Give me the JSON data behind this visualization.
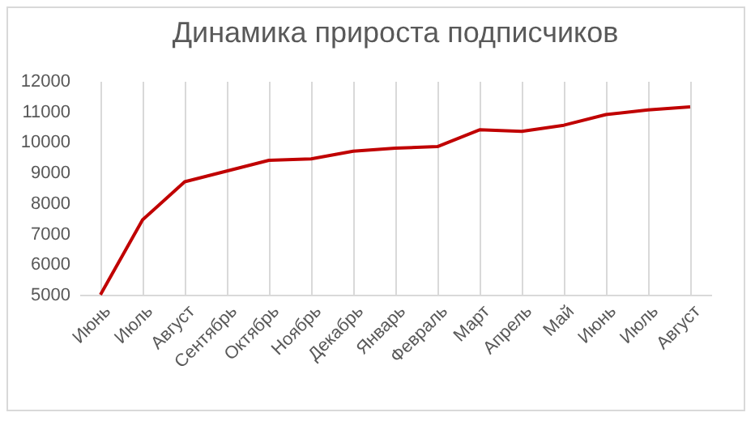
{
  "chart_data": {
    "type": "line",
    "title": "Динамика прироста подписчиков",
    "categories": [
      "Июнь",
      "Июль",
      "Август",
      "Сентябрь",
      "Октябрь",
      "Ноябрь",
      "Декабрь",
      "Январь",
      "Февраль",
      "Март",
      "Апрель",
      "Май",
      "Июнь",
      "Июль",
      "Август"
    ],
    "series": [
      {
        "color": "#c00000",
        "values": [
          5000,
          7450,
          8700,
          9050,
          9400,
          9450,
          9700,
          9800,
          9850,
          10400,
          10350,
          10550,
          10900,
          11050,
          11150
        ]
      }
    ],
    "ylim": [
      5000,
      12000
    ],
    "yticks": [
      5000,
      6000,
      7000,
      8000,
      9000,
      10000,
      11000,
      12000
    ],
    "grid": "x",
    "line_style": "solid"
  }
}
